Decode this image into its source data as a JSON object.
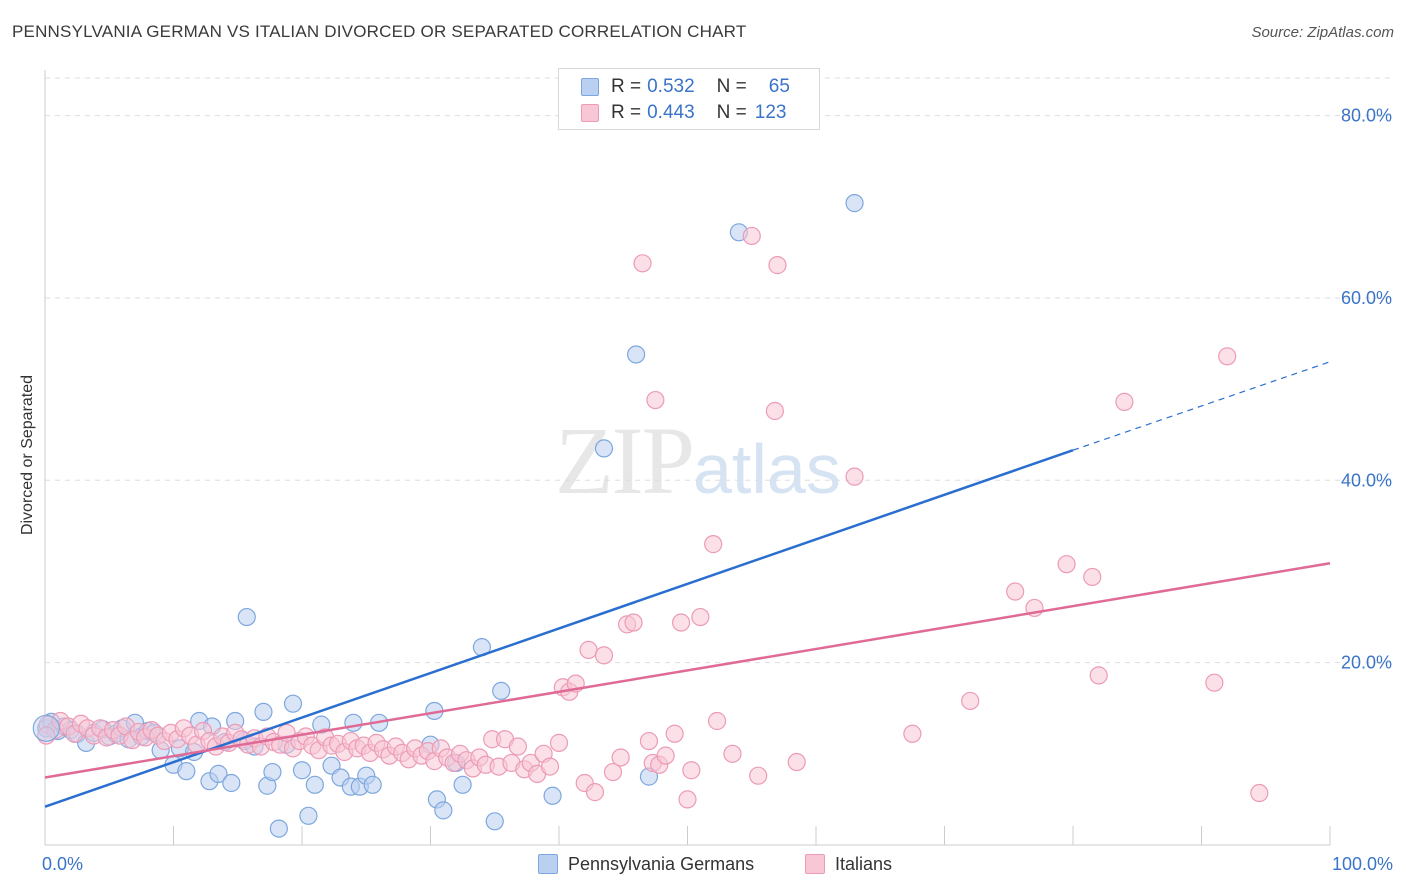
{
  "header": {
    "title": "PENNSYLVANIA GERMAN VS ITALIAN DIVORCED OR SEPARATED CORRELATION CHART",
    "source": "Source: ZipAtlas.com"
  },
  "watermark": {
    "zip": "ZIP",
    "atlas": "atlas"
  },
  "legend_top": {
    "r_label": "R =",
    "n_label": "N =",
    "rows": [
      {
        "r": "0.532",
        "n": "65"
      },
      {
        "r": "0.443",
        "n": "123"
      }
    ]
  },
  "chart_data": {
    "type": "scatter",
    "title": "PENNSYLVANIA GERMAN VS ITALIAN DIVORCED OR SEPARATED CORRELATION CHART",
    "xlabel": "",
    "ylabel": "Divorced or Separated",
    "xlim": [
      0,
      100
    ],
    "ylim": [
      0,
      85
    ],
    "x_tick_labels": [
      "0.0%",
      "100.0%"
    ],
    "y_ticks": [
      20,
      40,
      60,
      80
    ],
    "y_tick_labels": [
      "20.0%",
      "40.0%",
      "60.0%",
      "80.0%"
    ],
    "grid": true,
    "legend_position": "bottom",
    "series": [
      {
        "name": "Pennsylvania Germans",
        "color": "#7ea7de",
        "fill": "#b9d0f0",
        "line_color": "#2a6fcf",
        "r": "0.532",
        "n": "65",
        "trend": {
          "x0": 0,
          "y0": 4.2,
          "x1": 80,
          "y1": 43.3,
          "dash_to_x": 100,
          "dash_to_y": 53
        },
        "points": [
          [
            0.1,
            12.8
          ],
          [
            0.5,
            13.5
          ],
          [
            1.0,
            12.5
          ],
          [
            1.5,
            13.0
          ],
          [
            2.0,
            12.6
          ],
          [
            2.5,
            12.2
          ],
          [
            3.2,
            11.2
          ],
          [
            3.8,
            12.3
          ],
          [
            4.5,
            12.7
          ],
          [
            5.0,
            11.9
          ],
          [
            5.5,
            12.2
          ],
          [
            6.0,
            12.8
          ],
          [
            6.5,
            11.6
          ],
          [
            7.0,
            13.4
          ],
          [
            7.5,
            11.9
          ],
          [
            8.0,
            12.5
          ],
          [
            8.5,
            12.3
          ],
          [
            9.0,
            10.4
          ],
          [
            10.0,
            8.8
          ],
          [
            10.5,
            10.6
          ],
          [
            11.0,
            8.1
          ],
          [
            11.6,
            10.2
          ],
          [
            12.0,
            13.6
          ],
          [
            12.8,
            7.0
          ],
          [
            13.0,
            13.0
          ],
          [
            13.5,
            7.8
          ],
          [
            14.0,
            11.3
          ],
          [
            14.5,
            6.8
          ],
          [
            14.8,
            13.6
          ],
          [
            15.5,
            11.4
          ],
          [
            15.7,
            25.0
          ],
          [
            16.3,
            10.8
          ],
          [
            17.0,
            14.6
          ],
          [
            17.3,
            6.5
          ],
          [
            17.7,
            8.0
          ],
          [
            18.2,
            1.8
          ],
          [
            18.8,
            11.0
          ],
          [
            19.3,
            15.5
          ],
          [
            20.0,
            8.2
          ],
          [
            20.5,
            3.2
          ],
          [
            21.0,
            6.6
          ],
          [
            21.5,
            13.2
          ],
          [
            22.3,
            8.7
          ],
          [
            23.0,
            7.4
          ],
          [
            23.8,
            6.4
          ],
          [
            24.0,
            13.4
          ],
          [
            24.5,
            6.4
          ],
          [
            25.0,
            7.6
          ],
          [
            25.5,
            6.6
          ],
          [
            26.0,
            13.4
          ],
          [
            30.0,
            11.0
          ],
          [
            30.3,
            14.7
          ],
          [
            30.5,
            5.0
          ],
          [
            31.0,
            3.8
          ],
          [
            32.0,
            9.0
          ],
          [
            32.5,
            6.6
          ],
          [
            34.0,
            21.7
          ],
          [
            35.0,
            2.6
          ],
          [
            35.5,
            16.9
          ],
          [
            39.5,
            5.4
          ],
          [
            43.5,
            43.5
          ],
          [
            46.0,
            53.8
          ],
          [
            47.0,
            7.5
          ],
          [
            54.0,
            67.2
          ],
          [
            63.0,
            70.4
          ]
        ]
      },
      {
        "name": "Italians",
        "color": "#ec9bb6",
        "fill": "#f8c7d6",
        "line_color": "#e06a96",
        "r": "0.443",
        "n": "123",
        "trend": {
          "x0": 0,
          "y0": 7.4,
          "x1": 100,
          "y1": 30.9
        },
        "points": [
          [
            0.2,
            13.2
          ],
          [
            0.8,
            12.6
          ],
          [
            1.2,
            13.6
          ],
          [
            1.8,
            13.0
          ],
          [
            2.3,
            12.2
          ],
          [
            2.8,
            13.3
          ],
          [
            3.3,
            12.8
          ],
          [
            3.8,
            12.0
          ],
          [
            4.3,
            12.8
          ],
          [
            4.8,
            11.8
          ],
          [
            5.3,
            12.6
          ],
          [
            5.8,
            12.0
          ],
          [
            6.3,
            13.0
          ],
          [
            6.8,
            11.5
          ],
          [
            7.3,
            12.4
          ],
          [
            7.8,
            11.8
          ],
          [
            8.3,
            12.6
          ],
          [
            8.8,
            12.0
          ],
          [
            9.3,
            11.4
          ],
          [
            9.8,
            12.3
          ],
          [
            10.3,
            11.6
          ],
          [
            10.8,
            12.8
          ],
          [
            11.3,
            12.0
          ],
          [
            11.8,
            11.0
          ],
          [
            12.3,
            12.5
          ],
          [
            12.8,
            11.4
          ],
          [
            13.3,
            10.8
          ],
          [
            13.8,
            11.9
          ],
          [
            14.3,
            11.2
          ],
          [
            14.8,
            12.3
          ],
          [
            15.3,
            11.6
          ],
          [
            15.8,
            11.0
          ],
          [
            16.3,
            11.7
          ],
          [
            16.8,
            10.8
          ],
          [
            17.3,
            11.9
          ],
          [
            17.8,
            11.3
          ],
          [
            18.3,
            11.0
          ],
          [
            18.8,
            12.3
          ],
          [
            19.3,
            10.6
          ],
          [
            19.8,
            11.4
          ],
          [
            20.3,
            11.9
          ],
          [
            20.8,
            10.9
          ],
          [
            21.3,
            10.4
          ],
          [
            21.8,
            11.8
          ],
          [
            22.3,
            10.9
          ],
          [
            22.8,
            11.1
          ],
          [
            23.3,
            10.2
          ],
          [
            23.8,
            11.4
          ],
          [
            24.3,
            10.6
          ],
          [
            24.8,
            10.9
          ],
          [
            25.3,
            10.1
          ],
          [
            25.8,
            11.2
          ],
          [
            26.3,
            10.5
          ],
          [
            26.8,
            9.8
          ],
          [
            27.3,
            10.8
          ],
          [
            27.8,
            10.1
          ],
          [
            28.3,
            9.4
          ],
          [
            28.8,
            10.6
          ],
          [
            29.3,
            9.8
          ],
          [
            29.8,
            10.3
          ],
          [
            30.3,
            9.2
          ],
          [
            30.8,
            10.6
          ],
          [
            31.3,
            9.6
          ],
          [
            31.8,
            9.0
          ],
          [
            32.3,
            10.0
          ],
          [
            32.8,
            9.3
          ],
          [
            33.3,
            8.4
          ],
          [
            33.8,
            9.6
          ],
          [
            34.3,
            8.8
          ],
          [
            34.8,
            11.6
          ],
          [
            35.3,
            8.6
          ],
          [
            35.8,
            11.6
          ],
          [
            36.3,
            9.0
          ],
          [
            36.8,
            10.8
          ],
          [
            37.3,
            8.3
          ],
          [
            37.8,
            9.0
          ],
          [
            38.3,
            7.8
          ],
          [
            38.8,
            10.0
          ],
          [
            39.3,
            8.6
          ],
          [
            40.0,
            11.2
          ],
          [
            40.3,
            17.3
          ],
          [
            40.8,
            16.8
          ],
          [
            41.3,
            17.7
          ],
          [
            42.0,
            6.8
          ],
          [
            42.3,
            21.4
          ],
          [
            42.8,
            5.8
          ],
          [
            43.5,
            20.8
          ],
          [
            44.2,
            8.0
          ],
          [
            44.8,
            9.6
          ],
          [
            45.3,
            24.2
          ],
          [
            45.8,
            24.4
          ],
          [
            46.5,
            63.8
          ],
          [
            47.0,
            11.4
          ],
          [
            47.3,
            9.0
          ],
          [
            47.5,
            48.8
          ],
          [
            47.8,
            8.8
          ],
          [
            48.3,
            9.8
          ],
          [
            49.0,
            12.2
          ],
          [
            49.5,
            24.4
          ],
          [
            50.0,
            5.0
          ],
          [
            50.3,
            8.2
          ],
          [
            51.0,
            25.0
          ],
          [
            52.0,
            33.0
          ],
          [
            52.3,
            13.6
          ],
          [
            53.5,
            10.0
          ],
          [
            55.0,
            66.8
          ],
          [
            55.5,
            7.6
          ],
          [
            56.8,
            47.6
          ],
          [
            57.0,
            63.6
          ],
          [
            58.5,
            9.1
          ],
          [
            63.0,
            40.4
          ],
          [
            67.5,
            12.2
          ],
          [
            72.0,
            15.8
          ],
          [
            75.5,
            27.8
          ],
          [
            77.0,
            26.0
          ],
          [
            79.5,
            30.8
          ],
          [
            81.5,
            29.4
          ],
          [
            82.0,
            18.6
          ],
          [
            84.0,
            48.6
          ],
          [
            91.0,
            17.8
          ],
          [
            92.0,
            53.6
          ],
          [
            94.5,
            5.7
          ],
          [
            0.1,
            12.0
          ]
        ]
      }
    ]
  }
}
